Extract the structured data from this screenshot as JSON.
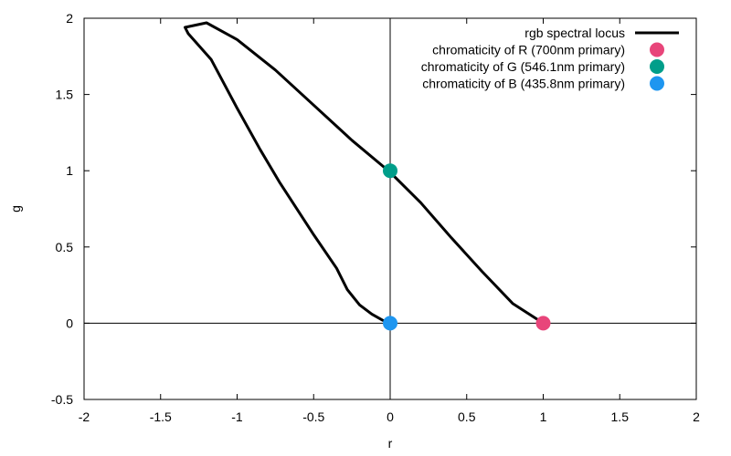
{
  "chart_data": {
    "type": "scatter",
    "xlabel": "r",
    "ylabel": "g",
    "xlim": [
      -2,
      2
    ],
    "ylim": [
      -0.5,
      2
    ],
    "x_ticks": [
      -2,
      -1.5,
      -1,
      -0.5,
      0,
      0.5,
      1,
      1.5,
      2
    ],
    "y_ticks": [
      -0.5,
      0,
      0.5,
      1,
      1.5,
      2
    ],
    "zero_axes": true,
    "legend_position": "top-right",
    "locus": {
      "name": "rgb spectral locus",
      "color": "#000000",
      "r": [
        0.0,
        -0.05,
        -0.12,
        -0.2,
        -0.28,
        -0.35,
        -0.5,
        -0.72,
        -0.85,
        -1.0,
        -1.17,
        -1.32,
        -1.34,
        -1.2,
        -1.0,
        -0.75,
        -0.5,
        -0.25,
        0.0,
        0.2,
        0.4,
        0.6,
        0.8,
        0.97,
        1.0
      ],
      "g": [
        0.0,
        0.02,
        0.06,
        0.12,
        0.22,
        0.36,
        0.58,
        0.92,
        1.14,
        1.41,
        1.73,
        1.9,
        1.94,
        1.97,
        1.86,
        1.66,
        1.43,
        1.2,
        0.99,
        0.79,
        0.56,
        0.34,
        0.13,
        0.02,
        0.0
      ]
    },
    "series": [
      {
        "name": "chromaticity of R (700nm primary)",
        "color": "#e8457a",
        "x": [
          1
        ],
        "y": [
          0
        ]
      },
      {
        "name": "chromaticity of G (546.1nm primary)",
        "color": "#009e8a",
        "x": [
          0
        ],
        "y": [
          1
        ]
      },
      {
        "name": "chromaticity of B (435.8nm primary)",
        "color": "#1e96f0",
        "x": [
          0
        ],
        "y": [
          0
        ]
      }
    ]
  }
}
